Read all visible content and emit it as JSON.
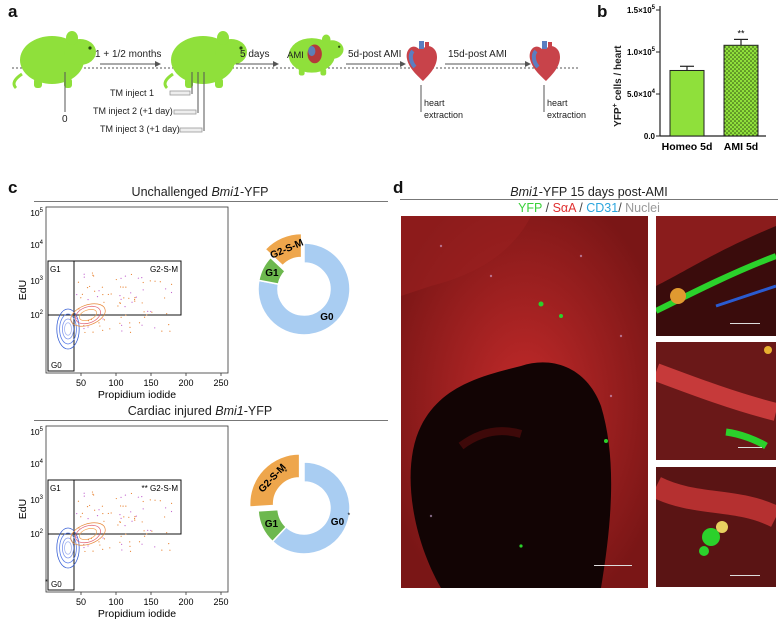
{
  "panels": {
    "a": "a",
    "b": "b",
    "c": "c",
    "d": "d"
  },
  "panel_a": {
    "arrows": {
      "first": "1 + 1/2 months",
      "second": "5 days",
      "third": "5d-post AMI",
      "fourth": "15d-post AMI"
    },
    "ami_label": "AMI",
    "time_zero": "0",
    "injections": [
      "TM inject 1",
      "TM inject 2 (+1 day)",
      "TM inject 3 (+1 day)"
    ],
    "heart_extraction_1": [
      "heart",
      "extraction"
    ],
    "heart_extraction_2": [
      "heart",
      "extraction"
    ],
    "mouse_color": "#8fe03b"
  },
  "panel_b": {
    "ylabel_parts": [
      "YFP",
      "+",
      " cells / heart"
    ],
    "significance": "**",
    "chart_data": {
      "type": "bar",
      "categories": [
        "Homeo 5d",
        "AMI 5d"
      ],
      "values": [
        78000,
        108000
      ],
      "errors": [
        5000,
        7000
      ],
      "ylim": [
        0,
        150000
      ],
      "ytick_values": [
        0,
        50000,
        100000,
        150000
      ],
      "ytick_labels": [
        [
          "0.0",
          ""
        ],
        [
          "5.0×10",
          "4"
        ],
        [
          "1.0×10",
          "5"
        ],
        [
          "1.5×10",
          "5"
        ]
      ],
      "colors": [
        "#8fe03b",
        "#8fe03b"
      ],
      "patterns": [
        "solid",
        "hatched"
      ]
    }
  },
  "panel_c": {
    "plots": [
      {
        "title_pre": "Unchallenged ",
        "title_italic": "Bmi1",
        "title_post": "-YFP",
        "xlabel": "Propidium iodide",
        "ylabel": "EdU",
        "gates": {
          "g1": "G1",
          "g2sm": "G2-S-M",
          "g0": "G0"
        },
        "xticks": [
          "50",
          "100",
          "150",
          "200",
          "250"
        ],
        "yticks": [
          [
            "10",
            "2"
          ],
          [
            "10",
            "3"
          ],
          [
            "10",
            "4"
          ],
          [
            "10",
            "5"
          ]
        ],
        "donut": {
          "segments": [
            {
              "label": "G0",
              "value": 78,
              "color": "#a9cdf2"
            },
            {
              "label": "G1",
              "value": 9,
              "color": "#6db84e"
            },
            {
              "label": "G2-S-M",
              "value": 13,
              "color": "#eea64c"
            }
          ]
        }
      },
      {
        "title_pre": "Cardiac injured ",
        "title_italic": "Bmi1",
        "title_post": "-YFP",
        "xlabel": "Propidium iodide",
        "ylabel": "EdU",
        "gates": {
          "g1": "G1",
          "g2sm": "** G2-S-M",
          "g0": "G0",
          "g0_mark": "*"
        },
        "xticks": [
          "50",
          "100",
          "150",
          "200",
          "250"
        ],
        "yticks": [
          [
            "10",
            "2"
          ],
          [
            "10",
            "3"
          ],
          [
            "10",
            "4"
          ],
          [
            "10",
            "5"
          ]
        ],
        "donut": {
          "segments": [
            {
              "label": "G0",
              "value": 62,
              "color": "#a9cdf2",
              "mark": "*"
            },
            {
              "label": "G1",
              "value": 12,
              "color": "#6db84e"
            },
            {
              "label": "G2-S-M",
              "value": 26,
              "color": "#eea64c",
              "mark": "**"
            }
          ]
        }
      }
    ]
  },
  "panel_d": {
    "title_italic": "Bmi1",
    "title_post": "-YFP 15 days post-AMI",
    "legend": [
      {
        "text": "YFP",
        "color": "#3bd13b"
      },
      {
        "text": " / ",
        "color": "#444"
      },
      {
        "text": "SαA",
        "color": "#e03030"
      },
      {
        "text": " / ",
        "color": "#444"
      },
      {
        "text": "CD31",
        "color": "#2ba6de"
      },
      {
        "text": "/ ",
        "color": "#444"
      },
      {
        "text": "Nuclei",
        "color": "#999"
      }
    ]
  }
}
